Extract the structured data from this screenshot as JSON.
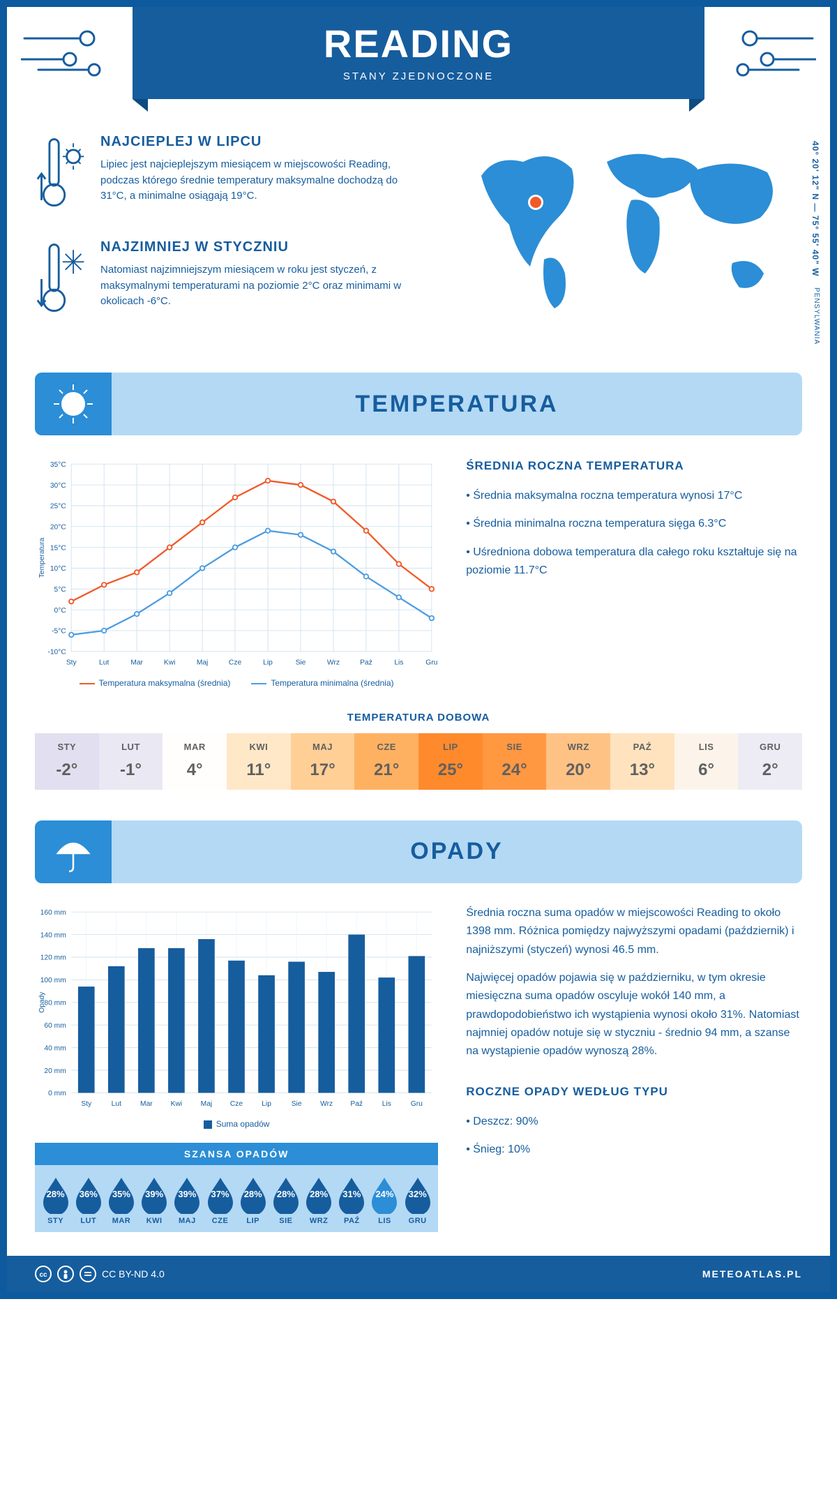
{
  "header": {
    "title": "READING",
    "subtitle": "STANY ZJEDNOCZONE"
  },
  "colors": {
    "brand": "#165d9e",
    "light": "#b4d9f5",
    "accent": "#2b8ed6",
    "line_max": "#f15a29",
    "line_min": "#4e9de0",
    "bar": "#165d9e",
    "border": "#0d5a9e"
  },
  "map": {
    "coords": "40° 20' 12\" N — 75° 55' 40\" W",
    "region": "PENSYLWANIA"
  },
  "intro": {
    "warm": {
      "title": "NAJCIEPLEJ W LIPCU",
      "text": "Lipiec jest najcieplejszym miesiącem w miejscowości Reading, podczas którego średnie temperatury maksymalne dochodzą do 31°C, a minimalne osiągają 19°C."
    },
    "cold": {
      "title": "NAJZIMNIEJ W STYCZNIU",
      "text": "Natomiast najzimniejszym miesiącem w roku jest styczeń, z maksymalnymi temperaturami na poziomie 2°C oraz minimami w okolicach -6°C."
    }
  },
  "months": [
    "Sty",
    "Lut",
    "Mar",
    "Kwi",
    "Maj",
    "Cze",
    "Lip",
    "Sie",
    "Wrz",
    "Paź",
    "Lis",
    "Gru"
  ],
  "months_upper": [
    "STY",
    "LUT",
    "MAR",
    "KWI",
    "MAJ",
    "CZE",
    "LIP",
    "SIE",
    "WRZ",
    "PAŹ",
    "LIS",
    "GRU"
  ],
  "temperature": {
    "section_title": "TEMPERATURA",
    "y_label": "Temperatura",
    "y_ticks": [
      -10,
      -5,
      0,
      5,
      10,
      15,
      20,
      25,
      30,
      35
    ],
    "y_tick_labels": [
      "-10°C",
      "-5°C",
      "0°C",
      "5°C",
      "10°C",
      "15°C",
      "20°C",
      "25°C",
      "30°C",
      "35°C"
    ],
    "ylim": [
      -10,
      35
    ],
    "max_series": [
      2,
      6,
      9,
      15,
      21,
      27,
      31,
      30,
      26,
      19,
      11,
      5
    ],
    "min_series": [
      -6,
      -5,
      -1,
      4,
      10,
      15,
      19,
      18,
      14,
      8,
      3,
      -2
    ],
    "legend_max": "Temperatura maksymalna (średnia)",
    "legend_min": "Temperatura minimalna (średnia)",
    "side": {
      "title": "ŚREDNIA ROCZNA TEMPERATURA",
      "items": [
        "Średnia maksymalna roczna temperatura wynosi 17°C",
        "Średnia minimalna roczna temperatura sięga 6.3°C",
        "Uśredniona dobowa temperatura dla całego roku kształtuje się na poziomie 11.7°C"
      ]
    },
    "dobowa": {
      "title": "TEMPERATURA DOBOWA",
      "values": [
        "-2°",
        "-1°",
        "4°",
        "11°",
        "17°",
        "21°",
        "25°",
        "24°",
        "20°",
        "13°",
        "6°",
        "2°"
      ],
      "bg_colors": [
        "#e2dff0",
        "#eae8f3",
        "#fffefc",
        "#ffe8c8",
        "#ffcf96",
        "#ffb162",
        "#ff8a2c",
        "#ff9841",
        "#ffc285",
        "#ffe3bf",
        "#fcf4ea",
        "#edebf4"
      ]
    }
  },
  "precip": {
    "section_title": "OPADY",
    "y_label": "Opady",
    "y_ticks": [
      0,
      20,
      40,
      60,
      80,
      100,
      120,
      140,
      160
    ],
    "y_tick_labels": [
      "0 mm",
      "20 mm",
      "40 mm",
      "60 mm",
      "80 mm",
      "100 mm",
      "120 mm",
      "140 mm",
      "160 mm"
    ],
    "ylim": [
      0,
      160
    ],
    "bar_values": [
      94,
      112,
      128,
      128,
      136,
      117,
      104,
      116,
      107,
      140,
      102,
      121
    ],
    "legend_label": "Suma opadów",
    "side": {
      "p1": "Średnia roczna suma opadów w miejscowości Reading to około 1398 mm. Różnica pomiędzy najwyższymi opadami (październik) i najniższymi (styczeń) wynosi 46.5 mm.",
      "p2": "Najwięcej opadów pojawia się w październiku, w tym okresie miesięczna suma opadów oscyluje wokół 140 mm, a prawdopodobieństwo ich wystąpienia wynosi około 31%. Natomiast najmniej opadów notuje się w styczniu - średnio 94 mm, a szanse na wystąpienie opadów wynoszą 28%."
    },
    "chance": {
      "title": "SZANSA OPADÓW",
      "values": [
        "28%",
        "36%",
        "35%",
        "39%",
        "39%",
        "37%",
        "28%",
        "28%",
        "28%",
        "31%",
        "24%",
        "32%"
      ],
      "min_index": 10
    },
    "by_type": {
      "title": "ROCZNE OPADY WEDŁUG TYPU",
      "items": [
        "Deszcz: 90%",
        "Śnieg: 10%"
      ]
    }
  },
  "footer": {
    "license": "CC BY-ND 4.0",
    "site": "METEOATLAS.PL"
  }
}
